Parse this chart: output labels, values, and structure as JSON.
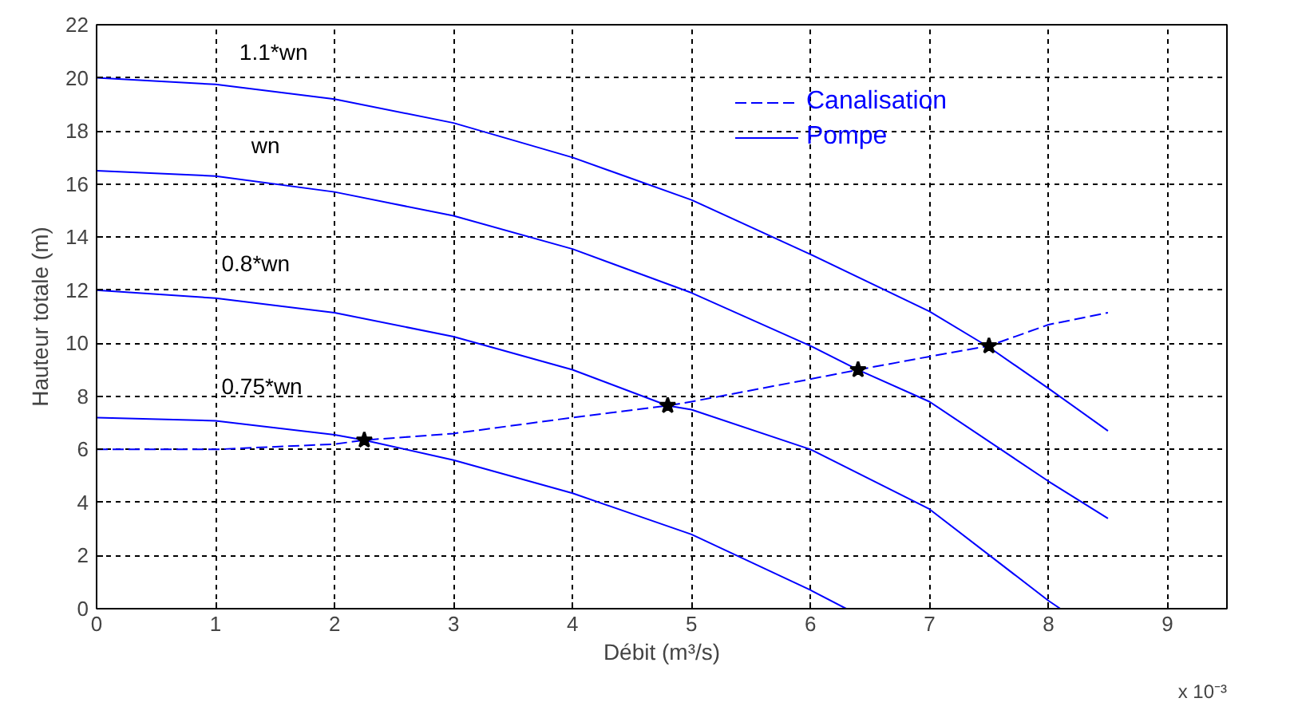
{
  "chart_data": {
    "type": "line",
    "xlabel": "Débit (m³/s)",
    "ylabel": "Hauteur totale (m)",
    "xlim": [
      0,
      9.5
    ],
    "ylim": [
      0,
      22
    ],
    "xticks": [
      0,
      1,
      2,
      3,
      4,
      5,
      6,
      7,
      8,
      9
    ],
    "yticks": [
      0,
      2,
      4,
      6,
      8,
      10,
      12,
      14,
      16,
      18,
      20,
      22
    ],
    "grid": true,
    "legend": "top right",
    "annotations": [
      {
        "text": "1.1*wn",
        "x": 1.2,
        "y": 19.65
      },
      {
        "text": "wn",
        "x": 1.3,
        "y": 16.15
      },
      {
        "text": "0.8*wn",
        "x": 1.05,
        "y": 11.68
      },
      {
        "text": "0.75*wn",
        "x": 1.05,
        "y": 7.06
      },
      "x 10⁻³"
    ],
    "series": [
      {
        "name": "Canalisation",
        "color": "#0000ff",
        "line_style": "dashed",
        "x": [
          0,
          1,
          2,
          2.25,
          3,
          4,
          4.8,
          5,
          6,
          6.4,
          7,
          7.5,
          8,
          8.5
        ],
        "values": [
          6.0,
          6.0,
          6.2,
          6.35,
          6.6,
          7.2,
          7.65,
          7.8,
          8.65,
          9.0,
          9.5,
          9.9,
          10.7,
          11.15
        ]
      },
      {
        "name": "Pompe",
        "color": "#0000ff",
        "line_style": "solid",
        "x": [
          0,
          1,
          2,
          3,
          4,
          5,
          6,
          7,
          7.5,
          8,
          8.5
        ],
        "values": [
          20,
          19.75,
          19.2,
          18.3,
          17.0,
          15.4,
          13.35,
          11.2,
          9.85,
          8.3,
          6.7
        ]
      },
      {
        "color": "#0000ff",
        "line_style": "solid",
        "x": [
          0,
          1,
          2,
          3,
          4,
          5,
          6,
          6.4,
          7,
          8,
          8.5
        ],
        "values": [
          16.5,
          16.3,
          15.7,
          14.8,
          13.55,
          11.9,
          9.9,
          9.0,
          7.8,
          4.8,
          3.4
        ]
      },
      {
        "color": "#0000ff",
        "line_style": "solid",
        "x": [
          0,
          1,
          2,
          3,
          4,
          4.8,
          5,
          6,
          7,
          8,
          8.1
        ],
        "values": [
          12,
          11.7,
          11.15,
          10.25,
          9.0,
          7.65,
          7.5,
          6.0,
          3.75,
          0.3,
          0
        ]
      },
      {
        "color": "#0000ff",
        "line_style": "solid",
        "x": [
          0,
          1,
          2,
          2.25,
          3,
          4,
          5,
          6,
          6.3
        ],
        "values": [
          7.2,
          7.08,
          6.55,
          6.35,
          5.6,
          4.35,
          2.8,
          0.7,
          0
        ]
      },
      {
        "type": "scatter",
        "marker": "star",
        "color": "#000000",
        "x": [
          2.25,
          4.8,
          6.4,
          7.5
        ],
        "values": [
          6.35,
          7.65,
          9.0,
          9.9
        ]
      }
    ]
  }
}
